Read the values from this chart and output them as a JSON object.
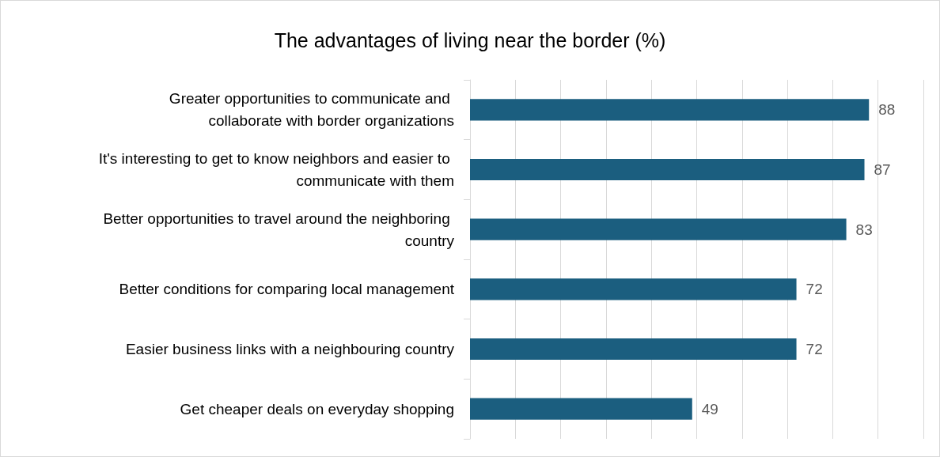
{
  "chart_data": {
    "type": "bar",
    "orientation": "horizontal",
    "title": "The advantages of living near the border (%)",
    "categories": [
      "Greater opportunities to communicate and collaborate with border organizations",
      "It's interesting to get to know neighbors and easier to communicate with them",
      "Better opportunities to travel around the neighboring country",
      "Better conditions for comparing local management",
      "Easier business links with a neighbouring country",
      "Get cheaper deals on everyday shopping"
    ],
    "values": [
      88,
      87,
      83,
      72,
      72,
      49
    ],
    "color": "#1b5e7f",
    "xlim": [
      0,
      100
    ],
    "xticks": [
      {
        "value": 0,
        "label": null
      },
      {
        "value": 10,
        "label": null
      },
      {
        "value": 20,
        "label": null
      },
      {
        "value": 30,
        "label": null
      },
      {
        "value": 40,
        "label": null
      },
      {
        "value": 50,
        "label": null
      },
      {
        "value": 60,
        "label": null
      },
      {
        "value": 70,
        "label": null
      },
      {
        "value": 80,
        "label": null
      },
      {
        "value": 90,
        "label": null
      },
      {
        "value": 100,
        "label": null
      }
    ],
    "grid": "x",
    "tick_labels": "y",
    "data_labels": true
  }
}
